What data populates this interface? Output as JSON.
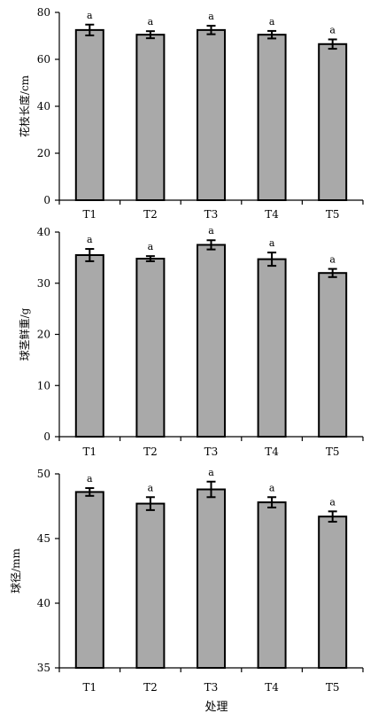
{
  "chart_data": [
    {
      "type": "bar",
      "categories": [
        "T1",
        "T2",
        "T3",
        "T4",
        "T5"
      ],
      "values": [
        72.5,
        70.5,
        72.5,
        70.5,
        66.5
      ],
      "errors": [
        2.3,
        1.5,
        1.8,
        1.6,
        2.0
      ],
      "significance": [
        "a",
        "a",
        "a",
        "a",
        "a"
      ],
      "ylabel": "花枝长度/cm",
      "ylim": [
        0,
        80
      ],
      "yticks": [
        0,
        20,
        40,
        60,
        80
      ],
      "bar_color": "#a9a9a9",
      "grid": false
    },
    {
      "type": "bar",
      "categories": [
        "T1",
        "T2",
        "T3",
        "T4",
        "T5"
      ],
      "values": [
        35.5,
        34.8,
        37.5,
        34.7,
        32.0
      ],
      "errors": [
        1.2,
        0.5,
        0.9,
        1.3,
        0.8
      ],
      "significance": [
        "a",
        "a",
        "a",
        "a",
        "a"
      ],
      "ylabel": "球茎鲜重/g",
      "ylim": [
        0,
        40
      ],
      "yticks": [
        0,
        10,
        20,
        30,
        40
      ],
      "bar_color": "#a9a9a9",
      "grid": false
    },
    {
      "type": "bar",
      "categories": [
        "T1",
        "T2",
        "T3",
        "T4",
        "T5"
      ],
      "values": [
        48.6,
        47.7,
        48.8,
        47.8,
        46.7
      ],
      "errors": [
        0.3,
        0.5,
        0.6,
        0.4,
        0.4
      ],
      "significance": [
        "a",
        "a",
        "a",
        "a",
        "a"
      ],
      "ylabel": "球径/mm",
      "xlabel": "处理",
      "ylim": [
        35,
        50
      ],
      "yticks": [
        35,
        40,
        45,
        50
      ],
      "bar_color": "#a9a9a9",
      "grid": false
    }
  ]
}
